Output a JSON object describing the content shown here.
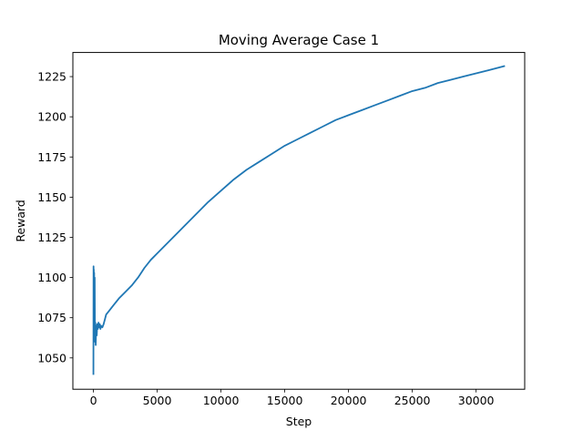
{
  "chart_data": {
    "type": "line",
    "title": "Moving Average Case 1",
    "xlabel": "Step",
    "ylabel": "Reward",
    "xlim": [
      -1610,
      33810
    ],
    "ylim": [
      1030.5,
      1240.0
    ],
    "xticks": [
      0,
      5000,
      10000,
      15000,
      20000,
      25000,
      30000
    ],
    "yticks": [
      1050,
      1075,
      1100,
      1125,
      1150,
      1175,
      1200,
      1225
    ],
    "grid": false,
    "legend": "none",
    "series": [
      {
        "color": "#1f77b4",
        "points": [
          [
            0,
            1040
          ],
          [
            10,
            1107
          ],
          [
            20,
            1060
          ],
          [
            30,
            1105
          ],
          [
            40,
            1063
          ],
          [
            60,
            1103
          ],
          [
            80,
            1064
          ],
          [
            100,
            1100
          ],
          [
            120,
            1060
          ],
          [
            150,
            1072
          ],
          [
            180,
            1058
          ],
          [
            220,
            1070
          ],
          [
            260,
            1064
          ],
          [
            300,
            1071
          ],
          [
            350,
            1068
          ],
          [
            400,
            1072
          ],
          [
            450,
            1069
          ],
          [
            500,
            1071
          ],
          [
            550,
            1068
          ],
          [
            600,
            1070
          ],
          [
            700,
            1069
          ],
          [
            800,
            1071
          ],
          [
            900,
            1074
          ],
          [
            1000,
            1077
          ],
          [
            1200,
            1079
          ],
          [
            1500,
            1082
          ],
          [
            2000,
            1087
          ],
          [
            2500,
            1091
          ],
          [
            3000,
            1095
          ],
          [
            3500,
            1100
          ],
          [
            4000,
            1106
          ],
          [
            4500,
            1111
          ],
          [
            5000,
            1115
          ],
          [
            6000,
            1123
          ],
          [
            7000,
            1131
          ],
          [
            8000,
            1139
          ],
          [
            9000,
            1147
          ],
          [
            10000,
            1154
          ],
          [
            11000,
            1161
          ],
          [
            12000,
            1167
          ],
          [
            13000,
            1172
          ],
          [
            14000,
            1177
          ],
          [
            15000,
            1182
          ],
          [
            16000,
            1186
          ],
          [
            17000,
            1190
          ],
          [
            18000,
            1194
          ],
          [
            19000,
            1198
          ],
          [
            20000,
            1201
          ],
          [
            21000,
            1204
          ],
          [
            22000,
            1207
          ],
          [
            23000,
            1210
          ],
          [
            24000,
            1213
          ],
          [
            25000,
            1216
          ],
          [
            26000,
            1218
          ],
          [
            27000,
            1221
          ],
          [
            28000,
            1223
          ],
          [
            29000,
            1225
          ],
          [
            30000,
            1227
          ],
          [
            31000,
            1229
          ],
          [
            32200,
            1231.5
          ]
        ]
      }
    ]
  }
}
